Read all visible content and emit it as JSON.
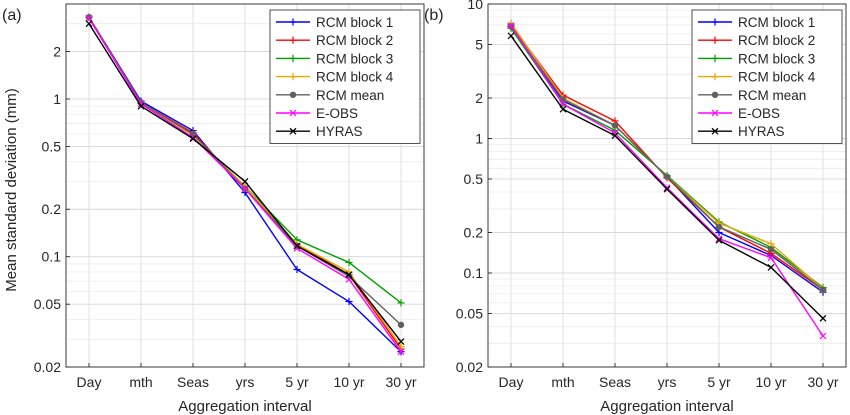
{
  "figure": {
    "panels": [
      "(a)",
      "(b)"
    ],
    "ylabel": "Mean standard deviation (mm)",
    "xlabel": "Aggregation interval"
  },
  "chart_data": [
    {
      "type": "line",
      "panel_label": "(a)",
      "yscale": "log",
      "ylim": [
        0.02,
        4
      ],
      "yticks": [
        0.02,
        0.05,
        0.1,
        0.2,
        0.5,
        1,
        2
      ],
      "ytick_labels": [
        "0.02",
        "0.05",
        "0.1",
        "0.2",
        "0.5",
        "1",
        "2"
      ],
      "categories": [
        "Day",
        "mth",
        "Seas",
        "yrs",
        "5 yr",
        "10 yr",
        "30 yr"
      ],
      "xlabel": "Aggregation interval",
      "ylabel": "Mean standard deviation (mm)",
      "grid": true,
      "legend_position": "top-right",
      "series": [
        {
          "name": "RCM block 1",
          "color": "#0000ff",
          "marker": "plus",
          "values": [
            3.3,
            0.97,
            0.63,
            0.255,
            0.083,
            0.052,
            0.025
          ]
        },
        {
          "name": "RCM block 2",
          "color": "#ff0000",
          "marker": "plus",
          "values": [
            3.3,
            0.95,
            0.61,
            0.27,
            0.12,
            0.077,
            0.026
          ]
        },
        {
          "name": "RCM block 3",
          "color": "#00a000",
          "marker": "plus",
          "values": [
            3.3,
            0.94,
            0.59,
            0.28,
            0.128,
            0.092,
            0.051
          ]
        },
        {
          "name": "RCM block 4",
          "color": "#e6a800",
          "marker": "plus",
          "values": [
            3.3,
            0.94,
            0.59,
            0.28,
            0.12,
            0.08,
            0.027
          ]
        },
        {
          "name": "RCM mean",
          "color": "#606060",
          "marker": "circle",
          "values": [
            3.3,
            0.95,
            0.6,
            0.27,
            0.117,
            0.075,
            0.037
          ]
        },
        {
          "name": "E-OBS",
          "color": "#ff00ff",
          "marker": "x",
          "values": [
            3.25,
            0.93,
            0.57,
            0.27,
            0.113,
            0.072,
            0.025
          ]
        },
        {
          "name": "HYRAS",
          "color": "#000000",
          "marker": "x",
          "values": [
            3.0,
            0.9,
            0.56,
            0.3,
            0.117,
            0.077,
            0.029
          ]
        }
      ]
    },
    {
      "type": "line",
      "panel_label": "(b)",
      "yscale": "log",
      "ylim": [
        0.02,
        10
      ],
      "yticks": [
        0.02,
        0.05,
        0.1,
        0.2,
        0.5,
        1,
        2,
        5,
        10
      ],
      "ytick_labels": [
        "0.02",
        "0.05",
        "0.1",
        "0.2",
        "0.5",
        "1",
        "2",
        "5",
        "10"
      ],
      "categories": [
        "Day",
        "mth",
        "Seas",
        "yrs",
        "5 yr",
        "10 yr",
        "30 yr"
      ],
      "xlabel": "Aggregation interval",
      "ylabel": "",
      "grid": true,
      "legend_position": "top-right",
      "series": [
        {
          "name": "RCM block 1",
          "color": "#0000ff",
          "marker": "plus",
          "values": [
            6.8,
            1.9,
            1.25,
            0.52,
            0.2,
            0.135,
            0.072
          ]
        },
        {
          "name": "RCM block 2",
          "color": "#ff0000",
          "marker": "plus",
          "values": [
            7.0,
            2.1,
            1.35,
            0.51,
            0.22,
            0.14,
            0.075
          ]
        },
        {
          "name": "RCM block 3",
          "color": "#00a000",
          "marker": "plus",
          "values": [
            6.6,
            1.8,
            1.15,
            0.53,
            0.24,
            0.155,
            0.078
          ]
        },
        {
          "name": "RCM block 4",
          "color": "#e6a800",
          "marker": "plus",
          "values": [
            7.2,
            2.0,
            1.25,
            0.52,
            0.235,
            0.165,
            0.076
          ]
        },
        {
          "name": "RCM mean",
          "color": "#606060",
          "marker": "circle",
          "values": [
            6.8,
            1.95,
            1.25,
            0.52,
            0.22,
            0.15,
            0.075
          ]
        },
        {
          "name": "E-OBS",
          "color": "#ff00ff",
          "marker": "x",
          "values": [
            6.9,
            1.8,
            1.1,
            0.43,
            0.18,
            0.13,
            0.034
          ]
        },
        {
          "name": "HYRAS",
          "color": "#000000",
          "marker": "x",
          "values": [
            5.8,
            1.65,
            1.05,
            0.42,
            0.175,
            0.11,
            0.046
          ]
        }
      ]
    }
  ]
}
